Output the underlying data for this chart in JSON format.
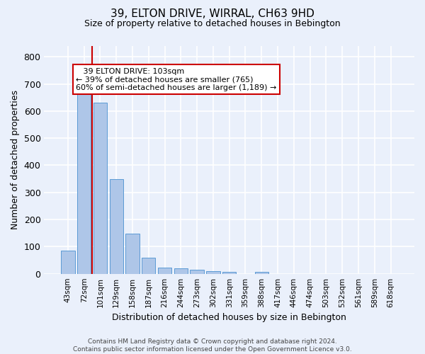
{
  "title": "39, ELTON DRIVE, WIRRAL, CH63 9HD",
  "subtitle": "Size of property relative to detached houses in Bebington",
  "xlabel": "Distribution of detached houses by size in Bebington",
  "ylabel": "Number of detached properties",
  "footer_line1": "Contains HM Land Registry data © Crown copyright and database right 2024.",
  "footer_line2": "Contains public sector information licensed under the Open Government Licence v3.0.",
  "annotation_line1": "   39 ELTON DRIVE: 103sqm",
  "annotation_line2": "← 39% of detached houses are smaller (765)",
  "annotation_line3": "60% of semi-detached houses are larger (1,189) →",
  "bar_labels": [
    "43sqm",
    "72sqm",
    "101sqm",
    "129sqm",
    "158sqm",
    "187sqm",
    "216sqm",
    "244sqm",
    "273sqm",
    "302sqm",
    "331sqm",
    "359sqm",
    "388sqm",
    "417sqm",
    "446sqm",
    "474sqm",
    "503sqm",
    "532sqm",
    "561sqm",
    "589sqm",
    "618sqm"
  ],
  "bar_values": [
    85,
    665,
    630,
    348,
    148,
    58,
    23,
    20,
    15,
    10,
    8,
    0,
    8,
    0,
    0,
    0,
    0,
    0,
    0,
    0,
    0
  ],
  "bar_color": "#aec6e8",
  "bar_edge_color": "#5b9bd5",
  "highlight_bar_index": 2,
  "highlight_line_color": "#cc0000",
  "ylim": [
    0,
    840
  ],
  "yticks": [
    0,
    100,
    200,
    300,
    400,
    500,
    600,
    700,
    800
  ],
  "bg_color": "#eaf0fb",
  "grid_color": "#ffffff",
  "annotation_box_color": "#ffffff",
  "annotation_box_edge": "#cc0000"
}
